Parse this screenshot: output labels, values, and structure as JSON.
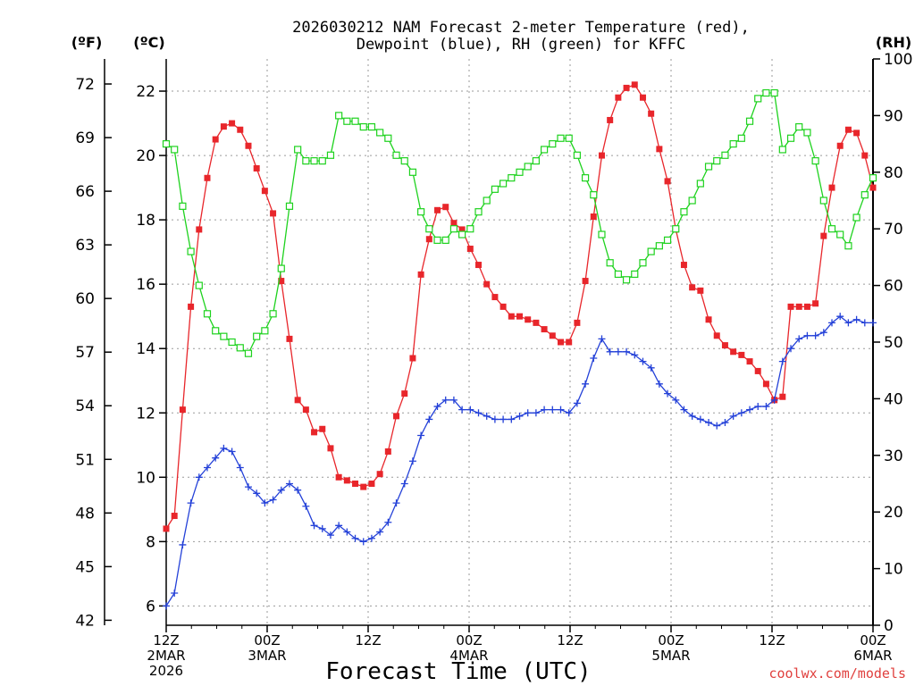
{
  "chart_data": {
    "type": "line",
    "title_line1": "2026030212 NAM Forecast 2-meter Temperature (red),",
    "title_line2": "Dewpoint (blue), RH (green) for KFFC",
    "xlabel": "Forecast Time (UTC)",
    "credit": "coolwx.com/models",
    "unit_f": "(ºF)",
    "unit_c": "(ºC)",
    "unit_rh": "(RH)",
    "x_range_hours": [
      0,
      84
    ],
    "celsius_axis": {
      "range": [
        5.4,
        23
      ],
      "ticks": [
        "6",
        "8",
        "10",
        "12",
        "14",
        "16",
        "18",
        "20",
        "22"
      ]
    },
    "fahrenheit_axis": {
      "ticks": [
        "42",
        "45",
        "48",
        "51",
        "54",
        "57",
        "60",
        "63",
        "66",
        "69",
        "72"
      ]
    },
    "rh_axis": {
      "range": [
        0,
        100
      ],
      "ticks": [
        "0",
        "10",
        "20",
        "30",
        "40",
        "50",
        "60",
        "70",
        "80",
        "90",
        "100"
      ]
    },
    "x_ticks": [
      {
        "hour": 0,
        "lines": [
          "12Z",
          "2MAR",
          "2026"
        ]
      },
      {
        "hour": 12,
        "lines": [
          "00Z",
          "3MAR"
        ]
      },
      {
        "hour": 24,
        "lines": [
          "12Z"
        ]
      },
      {
        "hour": 36,
        "lines": [
          "00Z",
          "4MAR"
        ]
      },
      {
        "hour": 48,
        "lines": [
          "12Z"
        ]
      },
      {
        "hour": 60,
        "lines": [
          "00Z",
          "5MAR"
        ]
      },
      {
        "hour": 72,
        "lines": [
          "12Z"
        ]
      },
      {
        "hour": 84,
        "lines": [
          "00Z",
          "6MAR"
        ]
      }
    ],
    "grid": true,
    "series": [
      {
        "key": "temperature",
        "color": "#e8262b",
        "marker": "filled-square",
        "axis": "celsius",
        "values": [
          8.4,
          8.8,
          12.1,
          15.3,
          17.7,
          19.3,
          20.5,
          20.9,
          21.0,
          20.8,
          20.3,
          19.6,
          18.9,
          18.2,
          16.1,
          14.3,
          12.4,
          12.1,
          11.4,
          11.5,
          10.9,
          10.0,
          9.9,
          9.8,
          9.7,
          9.8,
          10.1,
          10.8,
          11.9,
          12.6,
          13.7,
          16.3,
          17.4,
          18.3,
          18.4,
          17.9,
          17.7,
          17.1,
          16.6,
          16.0,
          15.6,
          15.3,
          15.0,
          15.0,
          14.9,
          14.8,
          14.6,
          14.4,
          14.2,
          14.2,
          14.8,
          16.1,
          18.1,
          20.0,
          21.1,
          21.8,
          22.1,
          22.2,
          21.8,
          21.3,
          20.2,
          19.2,
          17.7,
          16.6,
          15.9,
          15.8,
          14.9,
          14.4,
          14.1,
          13.9,
          13.8,
          13.6,
          13.3,
          12.9,
          12.4,
          12.5,
          15.3,
          15.3,
          15.3,
          15.4,
          17.5,
          19.0,
          20.3,
          20.8,
          20.7,
          20.0,
          19.0
        ]
      },
      {
        "key": "dewpoint",
        "color": "#2441d8",
        "marker": "plus",
        "axis": "celsius",
        "values": [
          6.0,
          6.4,
          7.9,
          9.2,
          10.0,
          10.3,
          10.6,
          10.9,
          10.8,
          10.3,
          9.7,
          9.5,
          9.2,
          9.3,
          9.6,
          9.8,
          9.6,
          9.1,
          8.5,
          8.4,
          8.2,
          8.5,
          8.3,
          8.1,
          8.0,
          8.1,
          8.3,
          8.6,
          9.2,
          9.8,
          10.5,
          11.3,
          11.8,
          12.2,
          12.4,
          12.4,
          12.1,
          12.1,
          12.0,
          11.9,
          11.8,
          11.8,
          11.8,
          11.9,
          12.0,
          12.0,
          12.1,
          12.1,
          12.1,
          12.0,
          12.3,
          12.9,
          13.7,
          14.3,
          13.9,
          13.9,
          13.9,
          13.8,
          13.6,
          13.4,
          12.9,
          12.6,
          12.4,
          12.1,
          11.9,
          11.8,
          11.7,
          11.6,
          11.7,
          11.9,
          12.0,
          12.1,
          12.2,
          12.2,
          12.4,
          13.6,
          14.0,
          14.3,
          14.4,
          14.4,
          14.5,
          14.8,
          15.0,
          14.8,
          14.9,
          14.8,
          14.8
        ]
      },
      {
        "key": "relative_humidity",
        "color": "#1ed21e",
        "marker": "open-square",
        "axis": "rh",
        "values": [
          85,
          84,
          74,
          66,
          60,
          55,
          52,
          51,
          50,
          49,
          48,
          51,
          52,
          55,
          63,
          74,
          84,
          82,
          82,
          82,
          83,
          90,
          89,
          89,
          88,
          88,
          87,
          86,
          83,
          82,
          80,
          73,
          70,
          68,
          68,
          70,
          69,
          70,
          73,
          75,
          77,
          78,
          79,
          80,
          81,
          82,
          84,
          85,
          86,
          86,
          83,
          79,
          76,
          69,
          64,
          62,
          61,
          62,
          64,
          66,
          67,
          68,
          70,
          73,
          75,
          78,
          81,
          82,
          83,
          85,
          86,
          89,
          93,
          94,
          94,
          84,
          86,
          88,
          87,
          82,
          75,
          70,
          69,
          67,
          72,
          76,
          79
        ]
      }
    ]
  }
}
